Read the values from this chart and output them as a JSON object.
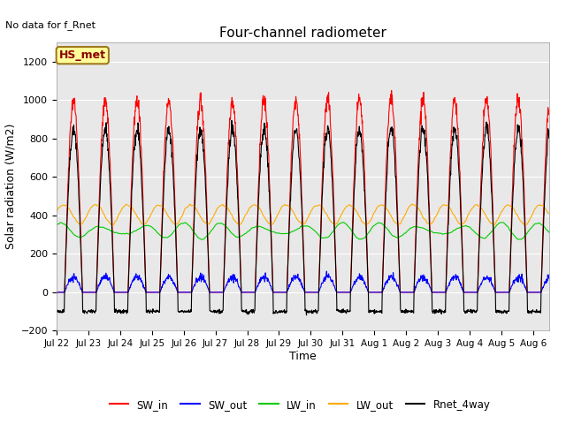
{
  "title": "Four-channel radiometer",
  "top_left_text": "No data for f_Rnet",
  "xlabel": "Time",
  "ylabel": "Solar radiation (W/m2)",
  "ylim": [
    -200,
    1300
  ],
  "yticks": [
    -200,
    0,
    200,
    400,
    600,
    800,
    1000,
    1200
  ],
  "legend_labels": [
    "SW_in",
    "SW_out",
    "LW_in",
    "LW_out",
    "Rnet_4way"
  ],
  "legend_colors": [
    "#ff0000",
    "#0000ff",
    "#00cc00",
    "#ffaa00",
    "#000000"
  ],
  "box_label": "HS_met",
  "box_facecolor": "#ffff99",
  "box_edgecolor": "#a07820",
  "box_text_color": "#8b0000",
  "num_days": 15.5,
  "dt_hours": 0.25,
  "SW_in_peak": 1000,
  "SW_out_peak": 80,
  "LW_in_base": 320,
  "LW_in_amp": 30,
  "LW_out_base": 400,
  "LW_out_amp": 55,
  "Rnet_peak": 850,
  "Rnet_night": -100,
  "fig_bg_color": "#ffffff",
  "plot_bg_color": "#e8e8e8",
  "grid_color": "#ffffff",
  "xtick_labels": [
    "Jul 22",
    "Jul 23",
    "Jul 24",
    "Jul 25",
    "Jul 26",
    "Jul 27",
    "Jul 28",
    "Jul 29",
    "Jul 30",
    "Jul 31",
    "Aug 1",
    "Aug 2",
    "Aug 3",
    "Aug 4",
    "Aug 5",
    "Aug 6"
  ],
  "xtick_positions": [
    0,
    1,
    2,
    3,
    4,
    5,
    6,
    7,
    8,
    9,
    10,
    11,
    12,
    13,
    14,
    15
  ]
}
